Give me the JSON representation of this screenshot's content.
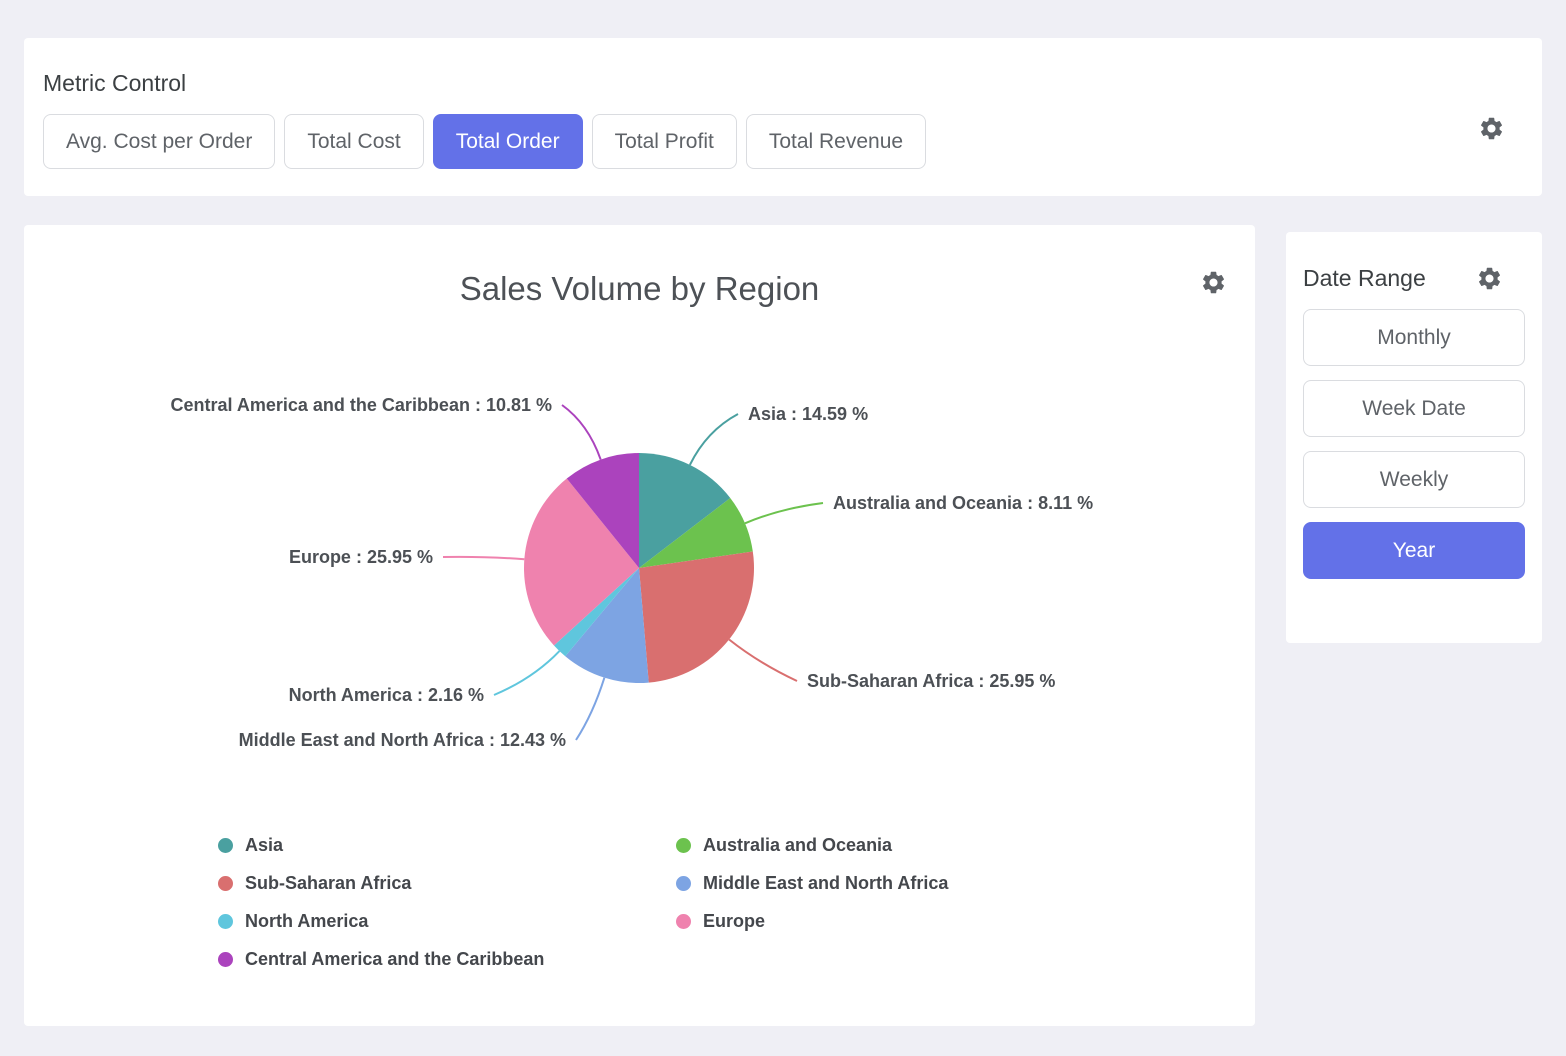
{
  "metric_control": {
    "title": "Metric Control",
    "buttons": [
      {
        "label": "Avg. Cost per Order",
        "active": false
      },
      {
        "label": "Total Cost",
        "active": false
      },
      {
        "label": "Total Order",
        "active": true
      },
      {
        "label": "Total Profit",
        "active": false
      },
      {
        "label": "Total Revenue",
        "active": false
      }
    ]
  },
  "date_range": {
    "title": "Date Range",
    "buttons": [
      {
        "label": "Monthly",
        "active": false
      },
      {
        "label": "Week Date",
        "active": false
      },
      {
        "label": "Weekly",
        "active": false
      },
      {
        "label": "Year",
        "active": true
      }
    ]
  },
  "chart_data": {
    "type": "pie",
    "title": "Sales Volume by Region",
    "unit": "%",
    "label_format": "{label} : {value} %",
    "legend_position": "bottom",
    "slices": [
      {
        "label": "Asia",
        "value": 14.59,
        "color": "#4AA0A0"
      },
      {
        "label": "Australia and Oceania",
        "value": 8.11,
        "color": "#6CC24E"
      },
      {
        "label": "Sub-Saharan Africa",
        "value": 25.95,
        "color": "#D96F6F"
      },
      {
        "label": "Middle East and North Africa",
        "value": 12.43,
        "color": "#7DA4E3"
      },
      {
        "label": "North America",
        "value": 2.16,
        "color": "#5FC6DD"
      },
      {
        "label": "Europe",
        "value": 25.95,
        "color": "#EF82AE"
      },
      {
        "label": "Central America and the Caribbean",
        "value": 10.81,
        "color": "#AB43BD"
      }
    ],
    "legend": [
      "Asia",
      "Australia and Oceania",
      "Sub-Saharan Africa",
      "Middle East and North Africa",
      "North America",
      "Europe",
      "Central America and the Caribbean"
    ]
  },
  "colors": {
    "accent": "#6371E8",
    "background": "#EFEFF5"
  }
}
